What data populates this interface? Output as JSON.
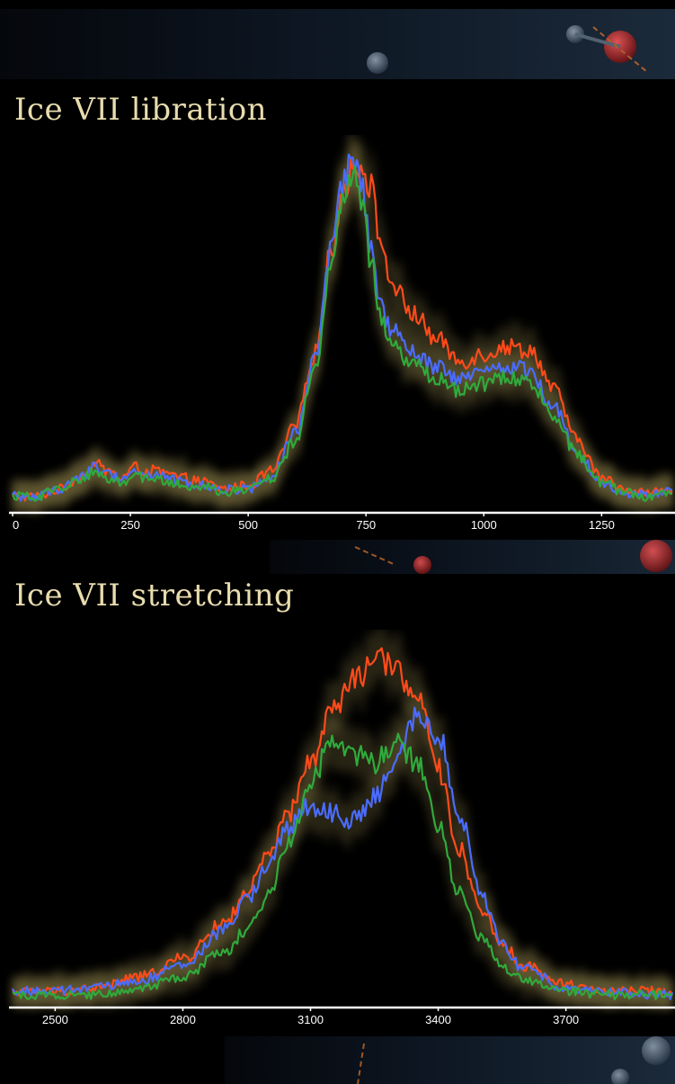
{
  "colors": {
    "background": "#000000",
    "title": "#e8dcae",
    "glow": "#b7a65a",
    "axis": "#ffffff",
    "red": "#ff4a1a",
    "blue": "#4a6cff",
    "green": "#2faa3c"
  },
  "panels": [
    {
      "title": "Ice VII libration"
    },
    {
      "title": "Ice VII stretching"
    }
  ],
  "chart_data": [
    {
      "type": "line",
      "title": "Ice VII libration",
      "xlabel": "",
      "ylabel": "",
      "xlim": [
        0,
        1400
      ],
      "ylim": [
        0,
        1.0
      ],
      "xticks": [
        0,
        250,
        500,
        750,
        1000,
        1250
      ],
      "grid": false,
      "legend": "none",
      "x": [
        0,
        50,
        100,
        150,
        175,
        200,
        230,
        260,
        280,
        300,
        330,
        360,
        400,
        450,
        500,
        550,
        600,
        640,
        680,
        700,
        720,
        740,
        760,
        780,
        800,
        850,
        900,
        950,
        1000,
        1050,
        1100,
        1150,
        1200,
        1250,
        1300,
        1350,
        1400
      ],
      "series": [
        {
          "color": "#ff4a1a",
          "values": [
            0.03,
            0.03,
            0.05,
            0.09,
            0.12,
            0.1,
            0.08,
            0.11,
            0.1,
            0.1,
            0.09,
            0.08,
            0.07,
            0.05,
            0.06,
            0.1,
            0.22,
            0.42,
            0.72,
            0.86,
            0.92,
            0.94,
            0.88,
            0.74,
            0.62,
            0.53,
            0.46,
            0.4,
            0.42,
            0.44,
            0.43,
            0.32,
            0.18,
            0.08,
            0.05,
            0.04,
            0.05
          ]
        },
        {
          "color": "#4a6cff",
          "values": [
            0.03,
            0.03,
            0.05,
            0.09,
            0.11,
            0.09,
            0.08,
            0.1,
            0.09,
            0.09,
            0.08,
            0.07,
            0.06,
            0.05,
            0.05,
            0.09,
            0.2,
            0.4,
            0.72,
            0.88,
            0.96,
            0.88,
            0.72,
            0.56,
            0.49,
            0.42,
            0.38,
            0.35,
            0.37,
            0.39,
            0.37,
            0.27,
            0.15,
            0.07,
            0.04,
            0.04,
            0.04
          ]
        },
        {
          "color": "#2faa3c",
          "values": [
            0.03,
            0.03,
            0.05,
            0.08,
            0.1,
            0.08,
            0.07,
            0.09,
            0.08,
            0.08,
            0.07,
            0.06,
            0.06,
            0.04,
            0.05,
            0.08,
            0.18,
            0.37,
            0.69,
            0.85,
            0.92,
            0.84,
            0.68,
            0.52,
            0.45,
            0.39,
            0.35,
            0.32,
            0.34,
            0.36,
            0.34,
            0.25,
            0.14,
            0.07,
            0.04,
            0.03,
            0.04
          ]
        }
      ]
    },
    {
      "type": "line",
      "title": "Ice VII stretching",
      "xlabel": "",
      "ylabel": "",
      "xlim": [
        2400,
        3950
      ],
      "ylim": [
        0,
        1.0
      ],
      "xticks": [
        2500,
        2800,
        3100,
        3400,
        3700
      ],
      "grid": false,
      "legend": "none",
      "x": [
        2400,
        2500,
        2600,
        2700,
        2800,
        2900,
        2950,
        3000,
        3050,
        3100,
        3150,
        3200,
        3250,
        3300,
        3350,
        3400,
        3450,
        3500,
        3550,
        3600,
        3700,
        3800,
        3900,
        3950
      ],
      "series": [
        {
          "color": "#ff4a1a",
          "values": [
            0.03,
            0.03,
            0.04,
            0.07,
            0.12,
            0.22,
            0.3,
            0.4,
            0.52,
            0.66,
            0.8,
            0.88,
            0.94,
            0.92,
            0.84,
            0.64,
            0.42,
            0.26,
            0.16,
            0.1,
            0.05,
            0.03,
            0.03,
            0.03
          ]
        },
        {
          "color": "#4a6cff",
          "values": [
            0.03,
            0.03,
            0.04,
            0.06,
            0.1,
            0.2,
            0.28,
            0.38,
            0.48,
            0.54,
            0.52,
            0.5,
            0.56,
            0.66,
            0.78,
            0.74,
            0.52,
            0.3,
            0.16,
            0.09,
            0.04,
            0.03,
            0.02,
            0.02
          ]
        },
        {
          "color": "#2faa3c",
          "values": [
            0.02,
            0.02,
            0.02,
            0.04,
            0.07,
            0.14,
            0.2,
            0.29,
            0.45,
            0.6,
            0.72,
            0.68,
            0.66,
            0.72,
            0.66,
            0.48,
            0.3,
            0.18,
            0.1,
            0.06,
            0.03,
            0.02,
            0.02,
            0.02
          ]
        }
      ]
    }
  ]
}
